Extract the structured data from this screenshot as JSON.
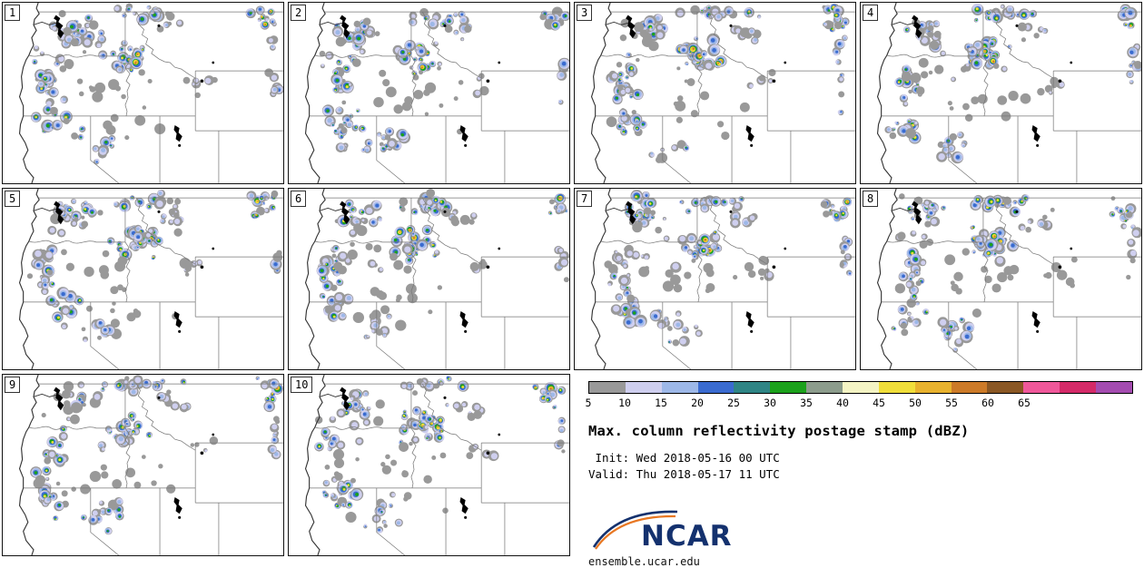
{
  "title": "Max. column reflectivity postage stamp (dBZ)",
  "init_line": " Init: Wed 2018-05-16 00 UTC",
  "valid_line": "Valid: Thu 2018-05-17 11 UTC",
  "logo": {
    "text": "NCAR",
    "url_text": "ensemble.ucar.edu"
  },
  "panels": [
    {
      "label": "1"
    },
    {
      "label": "2"
    },
    {
      "label": "3"
    },
    {
      "label": "4"
    },
    {
      "label": "5"
    },
    {
      "label": "6"
    },
    {
      "label": "7"
    },
    {
      "label": "8"
    },
    {
      "label": "9"
    },
    {
      "label": "10"
    }
  ],
  "colorbar": {
    "unit": "dBZ",
    "ticks": [
      "5",
      "10",
      "15",
      "20",
      "25",
      "30",
      "35",
      "40",
      "45",
      "50",
      "55",
      "60",
      "65"
    ],
    "colors": [
      "#999999",
      "#cfcfef",
      "#9db8e8",
      "#3a6bd0",
      "#2f8585",
      "#1ba11b",
      "#8c9c8c",
      "#f4f4c4",
      "#f0de3a",
      "#e8b22e",
      "#cc7a28",
      "#8a5724",
      "#f0589a",
      "#d42a68",
      "#a44cb0"
    ]
  },
  "map_colors": {
    "state_border": "#777777",
    "coastline": "#333333",
    "water": "#000000"
  }
}
